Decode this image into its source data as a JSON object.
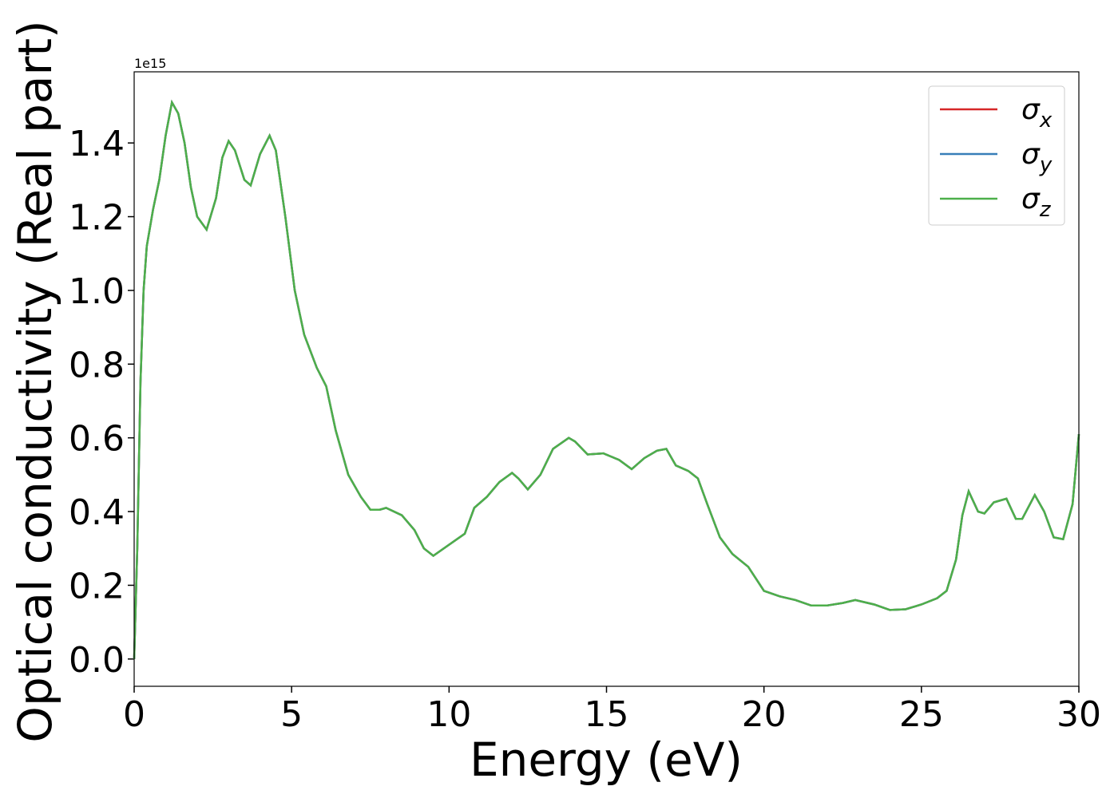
{
  "chart_data": {
    "type": "line",
    "xlabel": "Energy (eV)",
    "ylabel": "Optical conductivity (Real part)",
    "y_offset_text": "1e15",
    "x": [
      0,
      0.1,
      0.2,
      0.3,
      0.4,
      0.6,
      0.8,
      1.0,
      1.2,
      1.4,
      1.6,
      1.8,
      2.0,
      2.3,
      2.6,
      2.8,
      3.0,
      3.2,
      3.5,
      3.7,
      4.0,
      4.3,
      4.5,
      4.8,
      5.1,
      5.4,
      5.8,
      6.1,
      6.4,
      6.8,
      7.2,
      7.5,
      7.8,
      8.0,
      8.5,
      8.9,
      9.2,
      9.5,
      10.0,
      10.5,
      10.8,
      11.2,
      11.6,
      12.0,
      12.2,
      12.5,
      12.9,
      13.3,
      13.8,
      14.0,
      14.4,
      14.9,
      15.4,
      15.8,
      16.2,
      16.6,
      16.9,
      17.2,
      17.6,
      17.9,
      18.2,
      18.6,
      19.0,
      19.5,
      20.0,
      20.5,
      21.0,
      21.5,
      22.0,
      22.5,
      22.9,
      23.5,
      24.0,
      24.5,
      25.0,
      25.5,
      25.8,
      26.1,
      26.3,
      26.5,
      26.8,
      27.0,
      27.3,
      27.7,
      28.0,
      28.2,
      28.6,
      28.9,
      29.2,
      29.5,
      29.8,
      30.0
    ],
    "series": [
      {
        "name": "σx",
        "color": "#d62728",
        "values": [
          0.0,
          0.3,
          0.75,
          1.0,
          1.12,
          1.22,
          1.3,
          1.42,
          1.51,
          1.48,
          1.4,
          1.28,
          1.2,
          1.165,
          1.25,
          1.36,
          1.405,
          1.38,
          1.3,
          1.285,
          1.37,
          1.42,
          1.38,
          1.2,
          1.0,
          0.88,
          0.79,
          0.74,
          0.62,
          0.5,
          0.44,
          0.405,
          0.405,
          0.41,
          0.39,
          0.35,
          0.3,
          0.28,
          0.31,
          0.34,
          0.41,
          0.44,
          0.48,
          0.505,
          0.49,
          0.46,
          0.5,
          0.57,
          0.6,
          0.59,
          0.555,
          0.558,
          0.54,
          0.515,
          0.545,
          0.565,
          0.57,
          0.525,
          0.51,
          0.49,
          0.42,
          0.33,
          0.285,
          0.25,
          0.185,
          0.17,
          0.16,
          0.145,
          0.145,
          0.152,
          0.16,
          0.148,
          0.133,
          0.135,
          0.148,
          0.165,
          0.185,
          0.27,
          0.39,
          0.455,
          0.4,
          0.395,
          0.425,
          0.435,
          0.38,
          0.38,
          0.445,
          0.4,
          0.33,
          0.325,
          0.42,
          0.61
        ]
      },
      {
        "name": "σy",
        "color": "#377eb8",
        "values": [
          0.0,
          0.3,
          0.75,
          1.0,
          1.12,
          1.22,
          1.3,
          1.42,
          1.51,
          1.48,
          1.4,
          1.28,
          1.2,
          1.165,
          1.25,
          1.36,
          1.405,
          1.38,
          1.3,
          1.285,
          1.37,
          1.42,
          1.38,
          1.2,
          1.0,
          0.88,
          0.79,
          0.74,
          0.62,
          0.5,
          0.44,
          0.405,
          0.405,
          0.41,
          0.39,
          0.35,
          0.3,
          0.28,
          0.31,
          0.34,
          0.41,
          0.44,
          0.48,
          0.505,
          0.49,
          0.46,
          0.5,
          0.57,
          0.6,
          0.59,
          0.555,
          0.558,
          0.54,
          0.515,
          0.545,
          0.565,
          0.57,
          0.525,
          0.51,
          0.49,
          0.42,
          0.33,
          0.285,
          0.25,
          0.185,
          0.17,
          0.16,
          0.145,
          0.145,
          0.152,
          0.16,
          0.148,
          0.133,
          0.135,
          0.148,
          0.165,
          0.185,
          0.27,
          0.39,
          0.455,
          0.4,
          0.395,
          0.425,
          0.435,
          0.38,
          0.38,
          0.445,
          0.4,
          0.33,
          0.325,
          0.42,
          0.61
        ]
      },
      {
        "name": "σz",
        "color": "#4daf4a",
        "values": [
          0.0,
          0.3,
          0.75,
          1.0,
          1.12,
          1.22,
          1.3,
          1.42,
          1.51,
          1.48,
          1.4,
          1.28,
          1.2,
          1.165,
          1.25,
          1.36,
          1.405,
          1.38,
          1.3,
          1.285,
          1.37,
          1.42,
          1.38,
          1.2,
          1.0,
          0.88,
          0.79,
          0.74,
          0.62,
          0.5,
          0.44,
          0.405,
          0.405,
          0.41,
          0.39,
          0.35,
          0.3,
          0.28,
          0.31,
          0.34,
          0.41,
          0.44,
          0.48,
          0.505,
          0.49,
          0.46,
          0.5,
          0.57,
          0.6,
          0.59,
          0.555,
          0.558,
          0.54,
          0.515,
          0.545,
          0.565,
          0.57,
          0.525,
          0.51,
          0.49,
          0.42,
          0.33,
          0.285,
          0.25,
          0.185,
          0.17,
          0.16,
          0.145,
          0.145,
          0.152,
          0.16,
          0.148,
          0.133,
          0.135,
          0.148,
          0.165,
          0.185,
          0.27,
          0.39,
          0.455,
          0.4,
          0.395,
          0.425,
          0.435,
          0.38,
          0.38,
          0.445,
          0.4,
          0.33,
          0.325,
          0.42,
          0.61
        ]
      }
    ],
    "xlim": [
      0,
      30
    ],
    "xticks": [
      0,
      5,
      10,
      15,
      20,
      25,
      30
    ],
    "ylim": [
      -0.074,
      1.593
    ],
    "yticks": [
      {
        "value": 0,
        "label": "0.0"
      },
      0.2,
      0.4,
      0.6,
      0.8,
      {
        "value": 1,
        "label": "1.0"
      },
      1.2,
      1.4
    ],
    "grid": false,
    "legend": "upper right"
  }
}
